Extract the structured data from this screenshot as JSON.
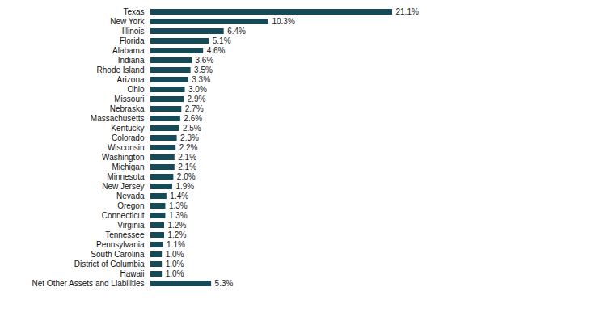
{
  "chart_data": {
    "type": "bar",
    "orientation": "horizontal",
    "categories": [
      "Texas",
      "New York",
      "Illinois",
      "Florida",
      "Alabama",
      "Indiana",
      "Rhode Island",
      "Arizona",
      "Ohio",
      "Missouri",
      "Nebraska",
      "Massachusetts",
      "Kentucky",
      "Colorado",
      "Wisconsin",
      "Washington",
      "Michigan",
      "Minnesota",
      "New Jersey",
      "Nevada",
      "Oregon",
      "Connecticut",
      "Virginia",
      "Tennessee",
      "Pennsylvania",
      "South Carolina",
      "District of Columbia",
      "Hawaii",
      "Net Other Assets and Liabilities"
    ],
    "values": [
      21.1,
      10.3,
      6.4,
      5.1,
      4.6,
      3.6,
      3.5,
      3.3,
      3.0,
      2.9,
      2.7,
      2.6,
      2.5,
      2.3,
      2.2,
      2.1,
      2.1,
      2.0,
      1.9,
      1.4,
      1.3,
      1.3,
      1.2,
      1.2,
      1.1,
      1.0,
      1.0,
      1.0,
      5.3
    ],
    "value_labels": [
      "21.1%",
      "10.3%",
      "6.4%",
      "5.1%",
      "4.6%",
      "3.6%",
      "3.5%",
      "3.3%",
      "3.0%",
      "2.9%",
      "2.7%",
      "2.6%",
      "2.5%",
      "2.3%",
      "2.2%",
      "2.1%",
      "2.1%",
      "2.0%",
      "1.9%",
      "1.4%",
      "1.3%",
      "1.3%",
      "1.2%",
      "1.2%",
      "1.1%",
      "1.0%",
      "1.0%",
      "1.0%",
      "5.3%"
    ],
    "color": "#164a56",
    "data_labels": true,
    "tick_labels": "y"
  }
}
